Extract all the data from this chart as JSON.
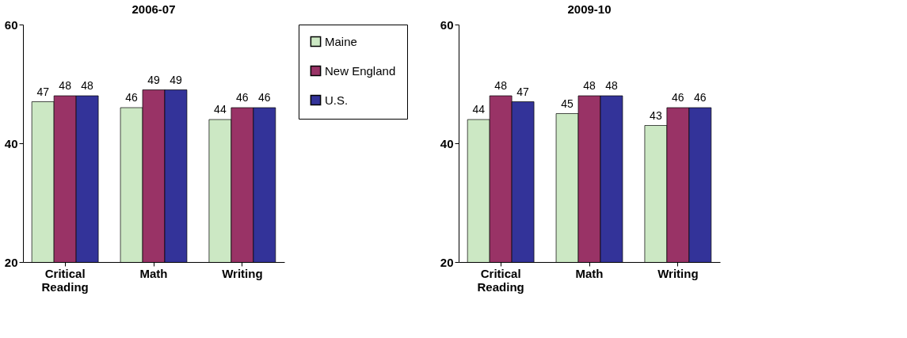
{
  "chart_data": [
    {
      "type": "bar",
      "title": "2006-07",
      "categories": [
        "Critical Reading",
        "Math",
        "Writing"
      ],
      "ylim": [
        20,
        60
      ],
      "yticks": [
        20,
        40,
        60
      ],
      "grid": false,
      "legend": "right",
      "data_labels": true,
      "series": [
        {
          "name": "Maine",
          "color": "#cce8c4",
          "values": [
            47,
            46,
            44
          ]
        },
        {
          "name": "New England",
          "color": "#993366",
          "values": [
            48,
            49,
            46
          ]
        },
        {
          "name": "U.S.",
          "color": "#333399",
          "values": [
            48,
            49,
            46
          ]
        }
      ]
    },
    {
      "type": "bar",
      "title": "2009-10",
      "categories": [
        "Critical Reading",
        "Math",
        "Writing"
      ],
      "ylim": [
        20,
        60
      ],
      "yticks": [
        20,
        40,
        60
      ],
      "grid": false,
      "data_labels": true,
      "series": [
        {
          "color": "#cce8c4",
          "values": [
            44,
            45,
            43
          ]
        },
        {
          "color": "#993366",
          "values": [
            48,
            48,
            46
          ]
        },
        {
          "color": "#333399",
          "values": [
            47,
            48,
            46
          ]
        }
      ]
    }
  ]
}
